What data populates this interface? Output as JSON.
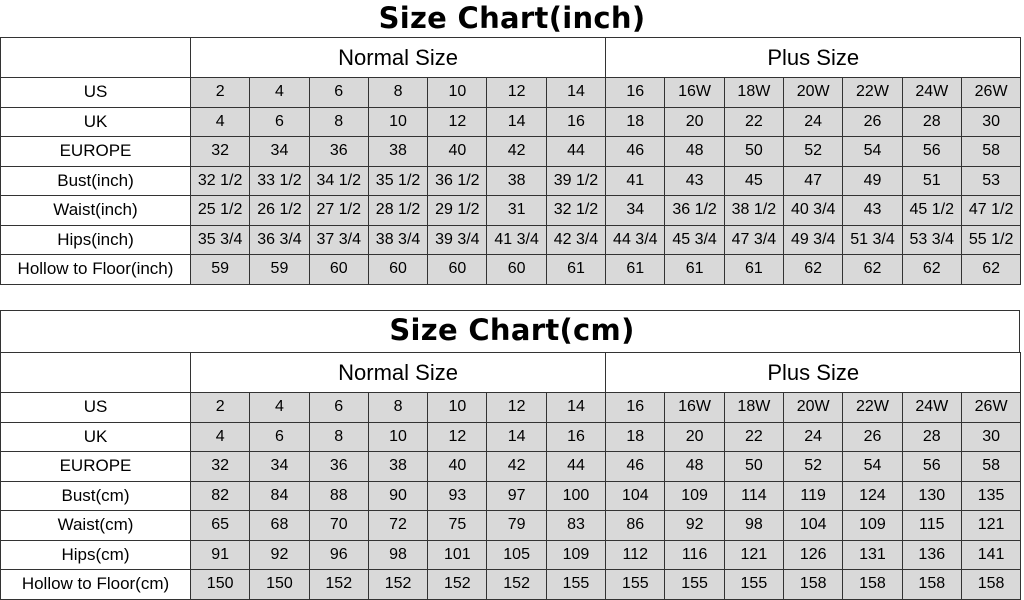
{
  "inch_chart": {
    "title": "Size Chart(inch)",
    "groups": [
      "Normal Size",
      "Plus Size"
    ],
    "rows": [
      {
        "label": "US",
        "values": [
          "2",
          "4",
          "6",
          "8",
          "10",
          "12",
          "14",
          "16",
          "16W",
          "18W",
          "20W",
          "22W",
          "24W",
          "26W"
        ]
      },
      {
        "label": "UK",
        "values": [
          "4",
          "6",
          "8",
          "10",
          "12",
          "14",
          "16",
          "18",
          "20",
          "22",
          "24",
          "26",
          "28",
          "30"
        ]
      },
      {
        "label": "EUROPE",
        "values": [
          "32",
          "34",
          "36",
          "38",
          "40",
          "42",
          "44",
          "46",
          "48",
          "50",
          "52",
          "54",
          "56",
          "58"
        ]
      },
      {
        "label": "Bust(inch)",
        "values": [
          "32 1/2",
          "33 1/2",
          "34 1/2",
          "35 1/2",
          "36 1/2",
          "38",
          "39 1/2",
          "41",
          "43",
          "45",
          "47",
          "49",
          "51",
          "53"
        ]
      },
      {
        "label": "Waist(inch)",
        "values": [
          "25 1/2",
          "26 1/2",
          "27 1/2",
          "28 1/2",
          "29 1/2",
          "31",
          "32 1/2",
          "34",
          "36 1/2",
          "38 1/2",
          "40 3/4",
          "43",
          "45 1/2",
          "47 1/2"
        ]
      },
      {
        "label": "Hips(inch)",
        "values": [
          "35 3/4",
          "36 3/4",
          "37 3/4",
          "38 3/4",
          "39 3/4",
          "41 3/4",
          "42 3/4",
          "44 3/4",
          "45 3/4",
          "47 3/4",
          "49 3/4",
          "51 3/4",
          "53 3/4",
          "55 1/2"
        ]
      },
      {
        "label": "Hollow to Floor(inch)",
        "values": [
          "59",
          "59",
          "60",
          "60",
          "60",
          "60",
          "61",
          "61",
          "61",
          "61",
          "62",
          "62",
          "62",
          "62"
        ]
      }
    ]
  },
  "cm_chart": {
    "title": "Size Chart(cm)",
    "groups": [
      "Normal Size",
      "Plus Size"
    ],
    "rows": [
      {
        "label": "US",
        "values": [
          "2",
          "4",
          "6",
          "8",
          "10",
          "12",
          "14",
          "16",
          "16W",
          "18W",
          "20W",
          "22W",
          "24W",
          "26W"
        ]
      },
      {
        "label": "UK",
        "values": [
          "4",
          "6",
          "8",
          "10",
          "12",
          "14",
          "16",
          "18",
          "20",
          "22",
          "24",
          "26",
          "28",
          "30"
        ]
      },
      {
        "label": "EUROPE",
        "values": [
          "32",
          "34",
          "36",
          "38",
          "40",
          "42",
          "44",
          "46",
          "48",
          "50",
          "52",
          "54",
          "56",
          "58"
        ]
      },
      {
        "label": "Bust(cm)",
        "values": [
          "82",
          "84",
          "88",
          "90",
          "93",
          "97",
          "100",
          "104",
          "109",
          "114",
          "119",
          "124",
          "130",
          "135"
        ]
      },
      {
        "label": "Waist(cm)",
        "values": [
          "65",
          "68",
          "70",
          "72",
          "75",
          "79",
          "83",
          "86",
          "92",
          "98",
          "104",
          "109",
          "115",
          "121"
        ]
      },
      {
        "label": "Hips(cm)",
        "values": [
          "91",
          "92",
          "96",
          "98",
          "101",
          "105",
          "109",
          "112",
          "116",
          "121",
          "126",
          "131",
          "136",
          "141"
        ]
      },
      {
        "label": "Hollow to Floor(cm)",
        "values": [
          "150",
          "150",
          "152",
          "152",
          "152",
          "152",
          "155",
          "155",
          "155",
          "155",
          "158",
          "158",
          "158",
          "158"
        ]
      }
    ]
  },
  "colors": {
    "cell_background": "#d9d9d9",
    "border": "#333333"
  }
}
